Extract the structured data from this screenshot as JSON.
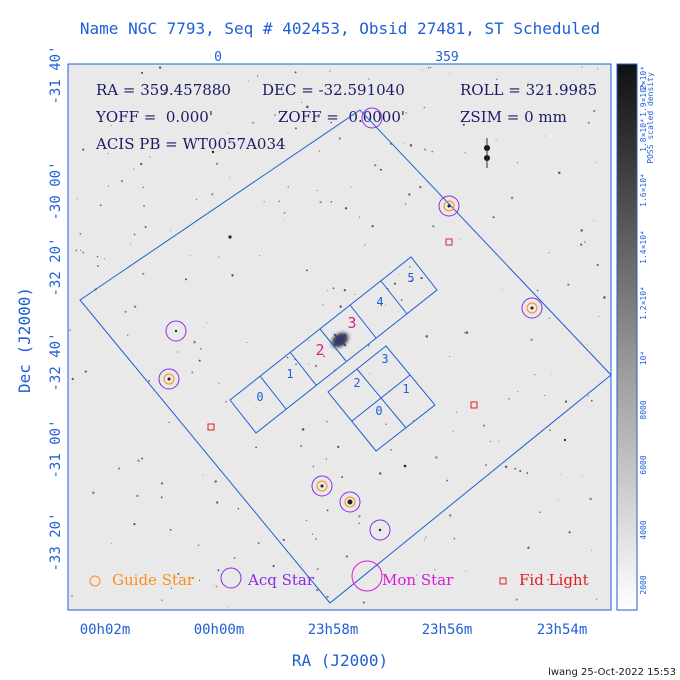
{
  "title": "Name NGC 7793, Seq # 402453, Obsid 27481, ST Scheduled",
  "top_axis": {
    "labels": [
      "0",
      "359"
    ]
  },
  "info": {
    "ra": "RA = 359.457880",
    "dec": "DEC = -32.591040",
    "roll": "ROLL = 321.9985",
    "yoff": "YOFF =  0.000'",
    "zoff": "ZOFF =  0.0000'",
    "zsim": "ZSIM = 0 mm",
    "acis": "ACIS PB = WT0057A034"
  },
  "y_axis": {
    "title": "Dec (J2000)",
    "ticks": [
      "-31 40'",
      "-30 00'",
      "-32 20'",
      "-32 40'",
      "-31 00'",
      "-33 20'"
    ]
  },
  "x_axis": {
    "title": "RA (J2000)",
    "ticks": [
      "00h02m",
      "00h00m",
      "23h58m",
      "23h56m",
      "23h54m"
    ]
  },
  "chips": {
    "s_labels": [
      "0",
      "1",
      "2",
      "3",
      "4",
      "5"
    ],
    "i_labels": [
      "0",
      "1",
      "2",
      "3"
    ]
  },
  "target_labels": [
    "2",
    "3"
  ],
  "colorbar": {
    "title": "POSS scaled density",
    "ticks": [
      "2×10⁴",
      "1.9×10⁴",
      "1.8×10⁴",
      "1.6×10⁴",
      "1.4×10⁴",
      "1.2×10⁴",
      "10⁴",
      "8000",
      "6000",
      "4000",
      "2000"
    ]
  },
  "legend": {
    "guide": "Guide Star",
    "acq": "Acq Star",
    "mon": "Mon Star",
    "fid": "Fid Light"
  },
  "colors": {
    "frame": "#1f5fd6",
    "guide": "#ff8c1a",
    "acq": "#8a2be2",
    "mon": "#d81bd8",
    "fid": "#e02020",
    "sky": "#e9e9e9"
  },
  "footer": "lwang 25-Oct-2022 15:53"
}
